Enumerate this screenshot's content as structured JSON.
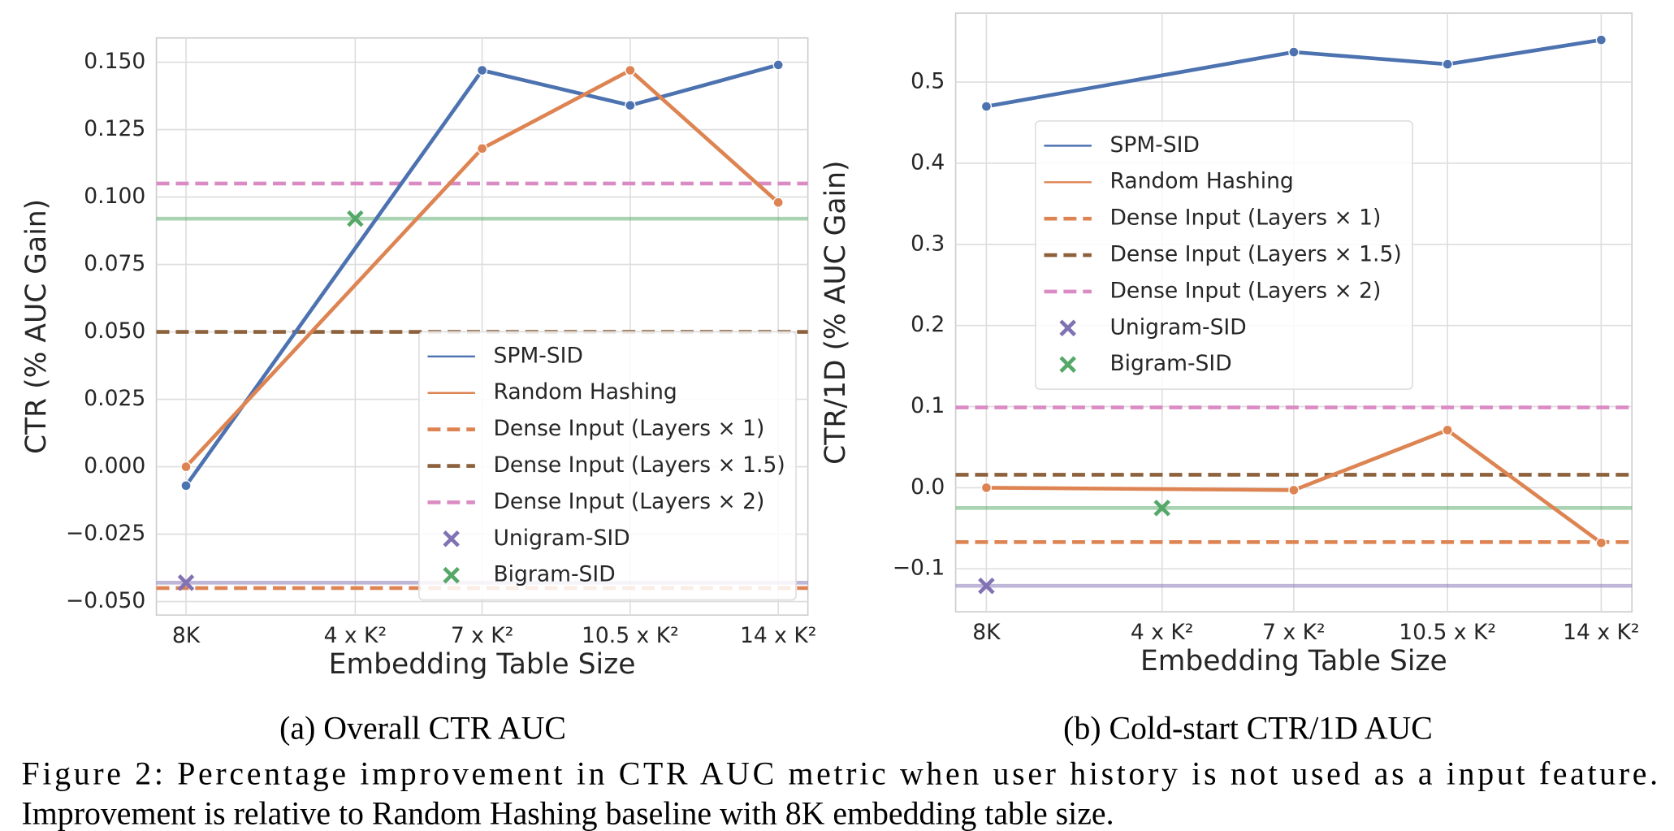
{
  "chart_data": [
    {
      "type": "line",
      "caption": "(a) Overall CTR AUC",
      "xlabel": "Embedding Table Size",
      "ylabel": "CTR (% AUC Gain)",
      "x": [
        0,
        7,
        10.5,
        14
      ],
      "xlim": [
        -0.7,
        14.7
      ],
      "xticks": [
        {
          "value": 0,
          "label": "8K"
        },
        {
          "value": 4,
          "label": "4 x K²"
        },
        {
          "value": 7,
          "label": "7 x K²"
        },
        {
          "value": 10.5,
          "label": "10.5 x K²"
        },
        {
          "value": 14,
          "label": "14 x K²"
        }
      ],
      "ylim": [
        -0.055,
        0.159
      ],
      "yticks": [
        {
          "value": -0.05,
          "label": "−0.050"
        },
        {
          "value": -0.025,
          "label": "−0.025"
        },
        {
          "value": 0,
          "label": "0.000"
        },
        {
          "value": 0.025,
          "label": "0.025"
        },
        {
          "value": 0.05,
          "label": "0.050"
        },
        {
          "value": 0.075,
          "label": "0.075"
        },
        {
          "value": 0.1,
          "label": "0.100"
        },
        {
          "value": 0.125,
          "label": "0.125"
        },
        {
          "value": 0.15,
          "label": "0.150"
        }
      ],
      "grid": true,
      "legend": "lower right",
      "series": [
        {
          "name": "SPM-SID",
          "color": "#4c72b0",
          "values": [
            -0.007,
            0.147,
            0.134,
            0.149
          ]
        },
        {
          "name": "Random Hashing",
          "color": "#dd8452",
          "values": [
            0.0,
            0.118,
            0.147,
            0.098
          ]
        }
      ],
      "hlines": [
        {
          "name": "Dense Input (Layers × 1)",
          "color": "#dd8452",
          "value": -0.045
        },
        {
          "name": "Dense Input (Layers × 1.5)",
          "color": "#8c613c",
          "value": 0.05
        },
        {
          "name": "Dense Input (Layers × 2)",
          "color": "#da8bc3",
          "value": 0.105
        }
      ],
      "points": [
        {
          "name": "Unigram-SID",
          "color": "#8172b3",
          "x": 0,
          "value": -0.043
        },
        {
          "name": "Bigram-SID",
          "color": "#55a868",
          "x": 4,
          "value": 0.092
        }
      ]
    },
    {
      "type": "line",
      "caption": "(b) Cold-start CTR/1D AUC",
      "xlabel": "Embedding Table Size",
      "ylabel": "CTR/1D (% AUC Gain)",
      "x": [
        0,
        7,
        10.5,
        14
      ],
      "xlim": [
        -0.7,
        14.7
      ],
      "xticks": [
        {
          "value": 0,
          "label": "8K"
        },
        {
          "value": 4,
          "label": "4 x K²"
        },
        {
          "value": 7,
          "label": "7 x K²"
        },
        {
          "value": 10.5,
          "label": "10.5 x K²"
        },
        {
          "value": 14,
          "label": "14 x K²"
        }
      ],
      "ylim": [
        -0.153,
        0.585
      ],
      "yticks": [
        {
          "value": -0.1,
          "label": "−0.1"
        },
        {
          "value": 0,
          "label": "0.0"
        },
        0.1,
        0.2,
        0.3,
        0.4,
        0.5
      ],
      "grid": true,
      "legend": "upper left",
      "series": [
        {
          "name": "SPM-SID",
          "color": "#4c72b0",
          "values": [
            0.47,
            0.537,
            0.522,
            0.552
          ]
        },
        {
          "name": "Random Hashing",
          "color": "#dd8452",
          "values": [
            0.0,
            -0.003,
            0.071,
            -0.068
          ]
        }
      ],
      "hlines": [
        {
          "name": "Dense Input (Layers × 1)",
          "color": "#dd8452",
          "value": -0.067
        },
        {
          "name": "Dense Input (Layers × 1.5)",
          "color": "#8c613c",
          "value": 0.016
        },
        {
          "name": "Dense Input (Layers × 2)",
          "color": "#da8bc3",
          "value": 0.099
        }
      ],
      "points": [
        {
          "name": "Unigram-SID",
          "color": "#8172b3",
          "x": 0,
          "value": -0.121
        },
        {
          "name": "Bigram-SID",
          "color": "#55a868",
          "x": 4,
          "value": -0.025
        }
      ]
    }
  ],
  "figure_caption": [
    "Figure 2: Percentage improvement in CTR AUC metric when user history is not used as a input feature.",
    "Improvement is relative to Random Hashing baseline with 8K embedding table size."
  ]
}
